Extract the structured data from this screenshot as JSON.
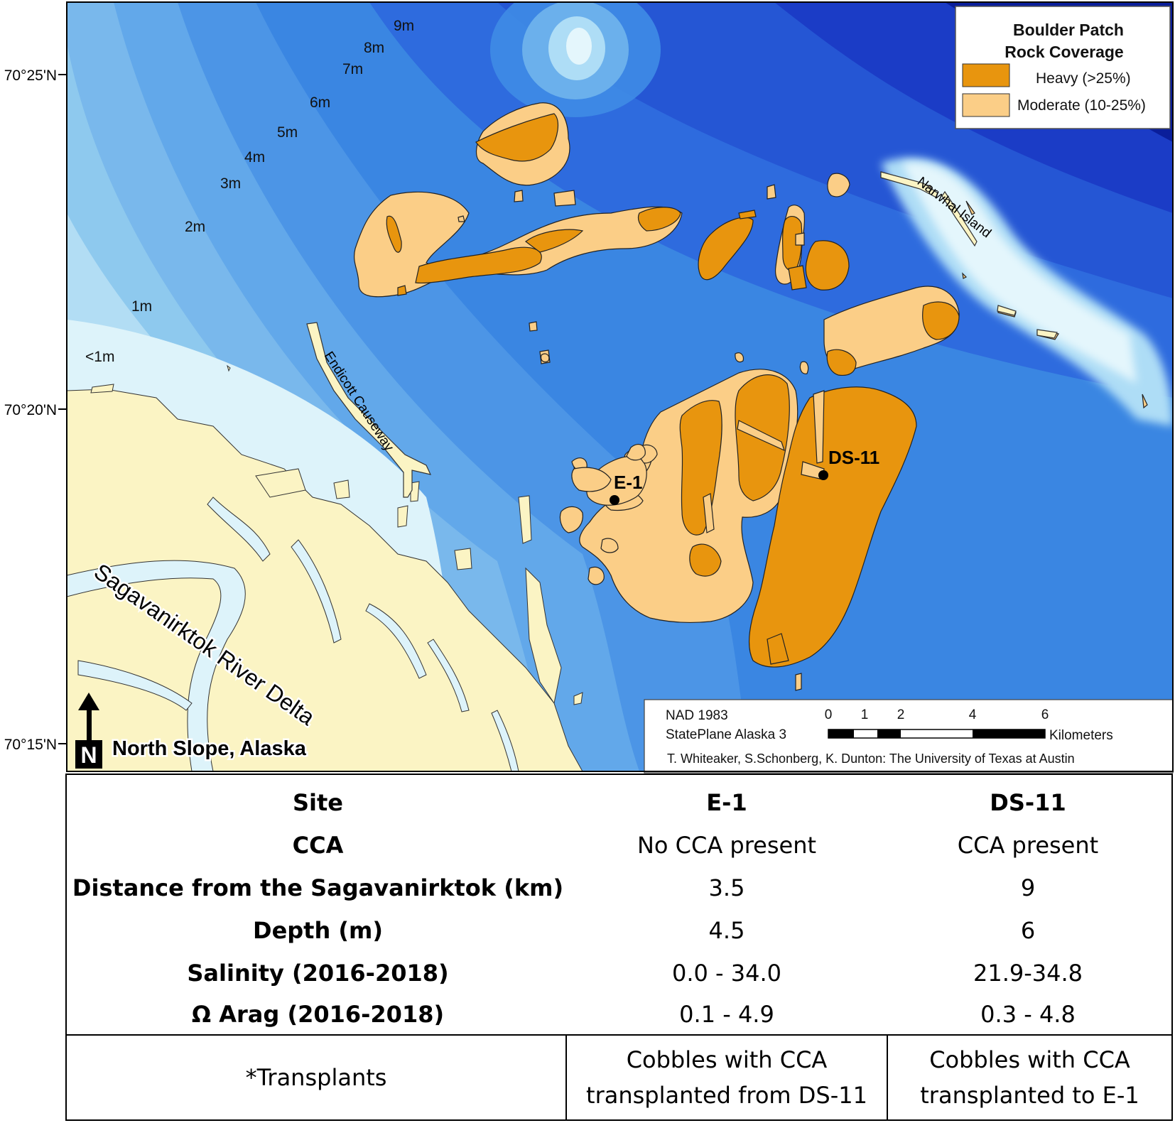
{
  "map": {
    "latitude_labels": [
      "70°25'N",
      "70°20'N",
      "70°15'N"
    ],
    "depth_labels": [
      "9m",
      "8m",
      "7m",
      "6m",
      "5m",
      "4m",
      "3m",
      "2m",
      "1m",
      "<1m"
    ],
    "places": {
      "narwhal": "Narwhal Island",
      "endicott": "Endicott Causeway",
      "river": "Sagavanirktok River Delta",
      "region": "North Slope, Alaska"
    },
    "north_letter": "N",
    "sites": [
      {
        "id": "e1",
        "label": "E-1"
      },
      {
        "id": "ds11",
        "label": "DS-11"
      }
    ],
    "colors": {
      "heavy": "#E8950E",
      "moderate": "#FBCE87",
      "land": "#FBF4C4",
      "deep": "#0A1E9A",
      "mid": "#3A86E2",
      "shallow": "#8EC9EE",
      "nearshore": "#DDF3FA"
    },
    "legend": {
      "title_line1": "Boulder Patch",
      "title_line2": "Rock Coverage",
      "heavy": "Heavy (>25%)",
      "moderate": "Moderate (10-25%)"
    },
    "info": {
      "datum": "NAD 1983",
      "projection": "StatePlane Alaska 3",
      "scale_ticks": [
        "0",
        "1",
        "2",
        "4",
        "6"
      ],
      "scale_unit": "Kilometers",
      "credit": "T. Whiteaker, S.Schonberg, K. Dunton: The University of Texas at Austin"
    }
  },
  "table": {
    "rows": [
      {
        "label": "Site",
        "e1": "E-1",
        "ds11": "DS-11"
      },
      {
        "label": "CCA",
        "e1": "No CCA present",
        "ds11": "CCA present"
      },
      {
        "label": "Distance from the Sagavanirktok (km)",
        "e1": "3.5",
        "ds11": "9"
      },
      {
        "label": "Depth (m)",
        "e1": "4.5",
        "ds11": "6"
      },
      {
        "label": "Salinity (2016-2018)",
        "e1": "0.0 - 34.0",
        "ds11": "21.9-34.8"
      },
      {
        "label": "Ω Arag (2016-2018)",
        "e1": "0.1 - 4.9",
        "ds11": "0.3 - 4.8"
      }
    ],
    "transplants": {
      "label": "*Transplants",
      "e1_line1": "Cobbles with CCA",
      "e1_line2": "transplanted from DS-11",
      "ds11_line1": "Cobbles with CCA",
      "ds11_line2": "transplanted to E-1"
    }
  }
}
